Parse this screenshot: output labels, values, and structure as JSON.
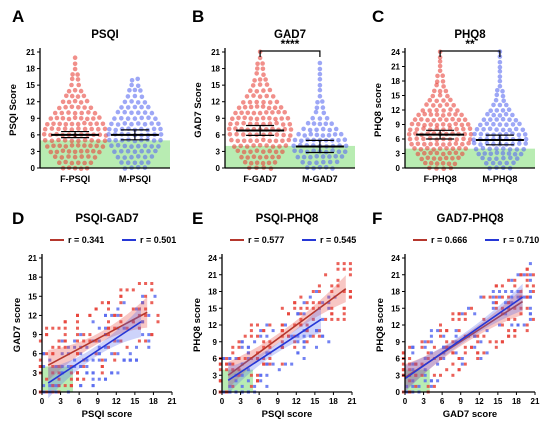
{
  "colors": {
    "female": "#e8453c",
    "male": "#5b6cf0",
    "female_line": "#b5372d",
    "male_line": "#2637d6",
    "normal_band": "#b8ecb2"
  },
  "chart_data": [
    {
      "id": "A",
      "letter": "A",
      "type": "scatter",
      "title": "PSQI",
      "ylabel": "PSQI Score",
      "xlabel": "",
      "ylim": [
        0,
        21
      ],
      "yticks": [
        "0",
        "3",
        "6",
        "9",
        "12",
        "15",
        "18",
        "21"
      ],
      "categories": [
        "F-PSQI",
        "M-PSQI"
      ],
      "normal_band_max": 5,
      "series": [
        {
          "category": "F-PSQI",
          "mean": 6.0,
          "ci": [
            5.5,
            6.6
          ],
          "min": 0,
          "max": 20
        },
        {
          "category": "M-PSQI",
          "mean": 6.0,
          "ci": [
            5.1,
            6.9
          ],
          "min": 0,
          "max": 16
        }
      ],
      "significance": ""
    },
    {
      "id": "B",
      "letter": "B",
      "type": "scatter",
      "title": "GAD7",
      "ylabel": "GAD7 Score",
      "xlabel": "",
      "ylim": [
        0,
        21
      ],
      "yticks": [
        "0",
        "3",
        "6",
        "9",
        "12",
        "15",
        "18",
        "21"
      ],
      "categories": [
        "F-GAD7",
        "M-GAD7"
      ],
      "normal_band_max": 4,
      "series": [
        {
          "category": "F-GAD7",
          "mean": 6.8,
          "ci": [
            5.9,
            7.7
          ],
          "min": 0,
          "max": 21
        },
        {
          "category": "M-GAD7",
          "mean": 3.9,
          "ci": [
            2.8,
            5.0
          ],
          "min": 0,
          "max": 19
        }
      ],
      "significance": "****"
    },
    {
      "id": "C",
      "letter": "C",
      "type": "scatter",
      "title": "PHQ8",
      "ylabel": "PHQ8 score",
      "xlabel": "",
      "ylim": [
        0,
        24
      ],
      "yticks": [
        "0",
        "3",
        "6",
        "9",
        "12",
        "15",
        "18",
        "21",
        "24"
      ],
      "categories": [
        "F-PHQ8",
        "M-PHQ8"
      ],
      "normal_band_max": 4,
      "series": [
        {
          "category": "F-PHQ8",
          "mean": 6.9,
          "ci": [
            6.0,
            7.8
          ],
          "min": 0,
          "max": 24
        },
        {
          "category": "M-PHQ8",
          "mean": 5.8,
          "ci": [
            4.8,
            6.8
          ],
          "min": 0,
          "max": 24
        }
      ],
      "significance": "**"
    },
    {
      "id": "D",
      "letter": "D",
      "type": "scatter",
      "title": "PSQI-GAD7",
      "xlabel": "PSQI score",
      "ylabel": "GAD7 score",
      "xlim": [
        0,
        21
      ],
      "ylim": [
        0,
        21
      ],
      "xticks": [
        "0",
        "3",
        "6",
        "9",
        "12",
        "15",
        "18",
        "21"
      ],
      "yticks": [
        "0",
        "3",
        "6",
        "9",
        "12",
        "15",
        "18",
        "21"
      ],
      "legend": [
        {
          "label": "r = 0.341"
        },
        {
          "label": "r = 0.501"
        }
      ],
      "normal_box": [
        5,
        4
      ],
      "fits": [
        {
          "x": [
            1,
            17
          ],
          "y": [
            4.2,
            12.5
          ],
          "x_range_data": [
            1,
            17
          ]
        },
        {
          "x": [
            1,
            16
          ],
          "y": [
            1.4,
            11.0
          ],
          "x_range_data": [
            1,
            16
          ]
        }
      ]
    },
    {
      "id": "E",
      "letter": "E",
      "type": "scatter",
      "title": "PSQI-PHQ8",
      "xlabel": "PSQI score",
      "ylabel": "PHQ8 score",
      "xlim": [
        0,
        21
      ],
      "ylim": [
        0,
        24
      ],
      "xticks": [
        "0",
        "3",
        "6",
        "9",
        "12",
        "15",
        "18",
        "21"
      ],
      "yticks": [
        "0",
        "3",
        "6",
        "9",
        "12",
        "15",
        "18",
        "21",
        "24"
      ],
      "legend": [
        {
          "label": "r = 0.577"
        },
        {
          "label": "r = 0.545"
        }
      ],
      "normal_box": [
        5,
        4
      ],
      "fits": [
        {
          "x": [
            1,
            20
          ],
          "y": [
            3.0,
            18.5
          ],
          "x_range_data": [
            1,
            20
          ]
        },
        {
          "x": [
            1,
            16
          ],
          "y": [
            2.1,
            13.0
          ],
          "x_range_data": [
            1,
            16
          ]
        }
      ]
    },
    {
      "id": "F",
      "letter": "F",
      "type": "scatter",
      "title": "GAD7-PHQ8",
      "xlabel": "GAD7 score",
      "ylabel": "PHQ8 score",
      "xlim": [
        0,
        21
      ],
      "ylim": [
        0,
        24
      ],
      "xticks": [
        "0",
        "3",
        "6",
        "9",
        "12",
        "15",
        "18",
        "21"
      ],
      "yticks": [
        "0",
        "3",
        "6",
        "9",
        "12",
        "15",
        "18",
        "21",
        "24"
      ],
      "legend": [
        {
          "label": "r = 0.666"
        },
        {
          "label": "r = 0.710"
        }
      ],
      "normal_box": [
        4,
        4
      ],
      "fits": [
        {
          "x": [
            0,
            19
          ],
          "y": [
            2.6,
            16.2
          ],
          "x_range_data": [
            0,
            19
          ]
        },
        {
          "x": [
            0,
            19
          ],
          "y": [
            2.4,
            17.0
          ],
          "x_range_data": [
            0,
            19
          ]
        }
      ]
    }
  ]
}
